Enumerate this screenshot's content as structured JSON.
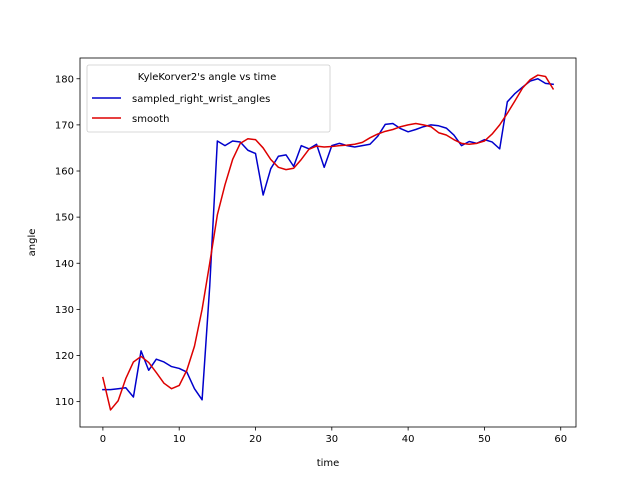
{
  "chart_data": {
    "type": "line",
    "title": "",
    "xlabel": "time",
    "ylabel": "angle",
    "xlim": [
      -3,
      62
    ],
    "ylim": [
      104.5,
      184.5
    ],
    "xticks": [
      0,
      10,
      20,
      30,
      40,
      50,
      60
    ],
    "yticks": [
      110,
      120,
      130,
      140,
      150,
      160,
      170,
      180
    ],
    "grid": false,
    "legend": {
      "title": "KyleKorver2's angle vs time",
      "placement": "upper-left"
    },
    "x": [
      0,
      1,
      2,
      3,
      4,
      5,
      6,
      7,
      8,
      9,
      10,
      11,
      12,
      13,
      14,
      15,
      16,
      17,
      18,
      19,
      20,
      21,
      22,
      23,
      24,
      25,
      26,
      27,
      28,
      29,
      30,
      31,
      32,
      33,
      34,
      35,
      36,
      37,
      38,
      39,
      40,
      41,
      42,
      43,
      44,
      45,
      46,
      47,
      48,
      49,
      50,
      51,
      52,
      53,
      54,
      55,
      56,
      57,
      58,
      59
    ],
    "series": [
      {
        "name": "sampled_right_wrist_angles",
        "color": "#0000cc",
        "values": [
          112.6,
          112.6,
          112.8,
          113.0,
          111.0,
          121.0,
          116.8,
          119.2,
          118.6,
          117.6,
          117.2,
          116.4,
          112.8,
          110.4,
          135.0,
          166.5,
          165.5,
          166.5,
          166.3,
          164.5,
          163.8,
          154.8,
          160.5,
          163.2,
          163.5,
          161.0,
          165.5,
          164.8,
          165.8,
          160.8,
          165.5,
          166.0,
          165.5,
          165.2,
          165.5,
          165.8,
          167.5,
          170.1,
          170.3,
          169.2,
          168.5,
          169.0,
          169.6,
          170.0,
          169.8,
          169.3,
          167.8,
          165.5,
          166.4,
          166.0,
          166.8,
          166.3,
          164.8,
          175.0,
          176.8,
          178.2,
          179.5,
          180.0,
          179.0,
          178.8
        ]
      },
      {
        "name": "smooth",
        "color": "#dd0000",
        "values": [
          115.2,
          108.2,
          110.2,
          115.0,
          118.6,
          119.8,
          118.5,
          116.3,
          114.0,
          112.8,
          113.5,
          116.8,
          122.0,
          130.0,
          140.0,
          150.5,
          157.0,
          162.5,
          166.0,
          167.0,
          166.8,
          165.0,
          162.5,
          160.8,
          160.3,
          160.6,
          162.5,
          164.7,
          165.4,
          165.2,
          165.3,
          165.5,
          165.6,
          165.8,
          166.2,
          167.2,
          168.0,
          168.6,
          169.0,
          169.6,
          170.0,
          170.3,
          170.0,
          169.6,
          168.3,
          167.8,
          166.8,
          166.0,
          165.8,
          166.0,
          166.5,
          168.0,
          170.0,
          172.5,
          175.2,
          178.0,
          179.8,
          180.8,
          180.5,
          177.8
        ]
      }
    ]
  }
}
